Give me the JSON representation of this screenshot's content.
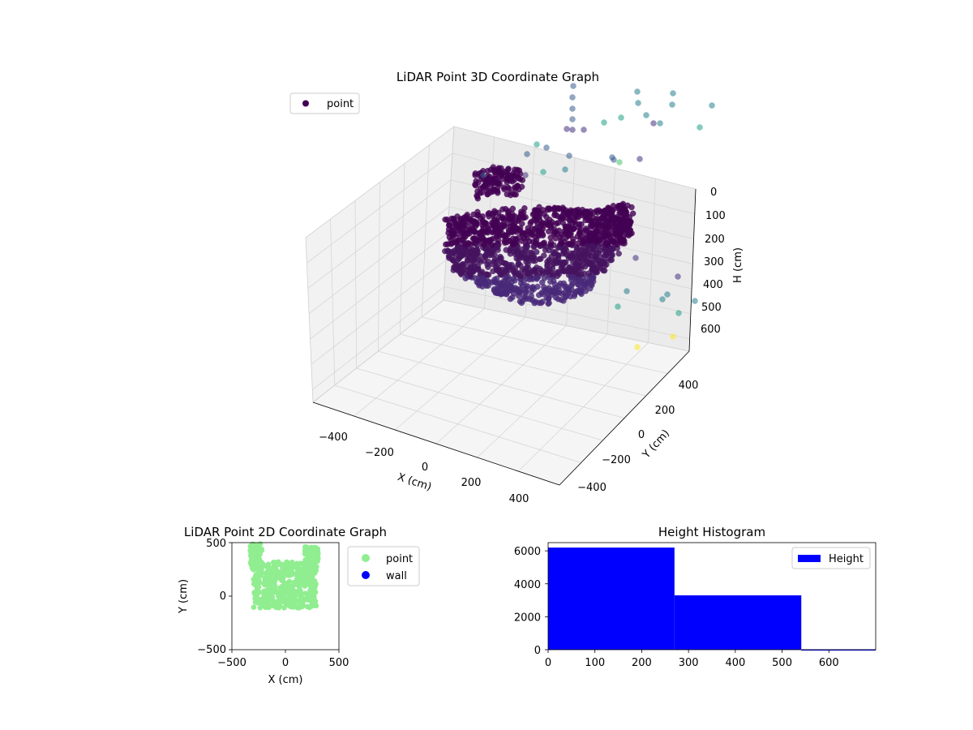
{
  "chart_data": [
    {
      "type": "scatter",
      "title": "LiDAR Point 3D Coordinate Graph",
      "xlabel": "X (cm)",
      "ylabel": "Y (cm)",
      "zlabel": "H (cm)",
      "xlim": [
        -500,
        500
      ],
      "ylim": [
        -500,
        500
      ],
      "zlim": [
        0,
        700
      ],
      "z_inverted": true,
      "xticks": [
        "−400",
        "−200",
        "0",
        "200",
        "400"
      ],
      "yticks": [
        "−400",
        "−200",
        "0",
        "200",
        "400"
      ],
      "zticks": [
        "0",
        "100",
        "200",
        "300",
        "400",
        "500",
        "600"
      ],
      "legend": {
        "position": "top-left",
        "entries": [
          "point"
        ]
      },
      "colormap": "viridis",
      "series": [
        {
          "name": "point",
          "color": "#440154"
        }
      ]
    },
    {
      "type": "scatter",
      "title": "LiDAR Point 2D Coordinate Graph",
      "xlabel": "X (cm)",
      "ylabel": "Y (cm)",
      "xlim": [
        -500,
        500
      ],
      "ylim": [
        -500,
        500
      ],
      "xticks": [
        "−500",
        "0",
        "500"
      ],
      "yticks": [
        "−500",
        "0",
        "500"
      ],
      "legend": {
        "position": "outside-right",
        "entries": [
          "point",
          "wall"
        ]
      },
      "series": [
        {
          "name": "point",
          "color": "#90ee90"
        },
        {
          "name": "wall",
          "color": "#0000ff"
        }
      ]
    },
    {
      "type": "bar",
      "title": "Height Histogram",
      "xlabel": "",
      "ylabel": "",
      "xlim": [
        0,
        700
      ],
      "ylim": [
        0,
        6500
      ],
      "xticks": [
        "0",
        "100",
        "200",
        "300",
        "400",
        "500",
        "600"
      ],
      "yticks": [
        "0",
        "2000",
        "4000",
        "6000"
      ],
      "legend": {
        "position": "top-right",
        "entries": [
          "Height"
        ]
      },
      "bins": [
        {
          "from": 0,
          "to": 270,
          "count": 6200
        },
        {
          "from": 270,
          "to": 541,
          "count": 3300
        },
        {
          "from": 541,
          "to": 700,
          "count": 20
        }
      ],
      "color": "#0000ff"
    }
  ]
}
